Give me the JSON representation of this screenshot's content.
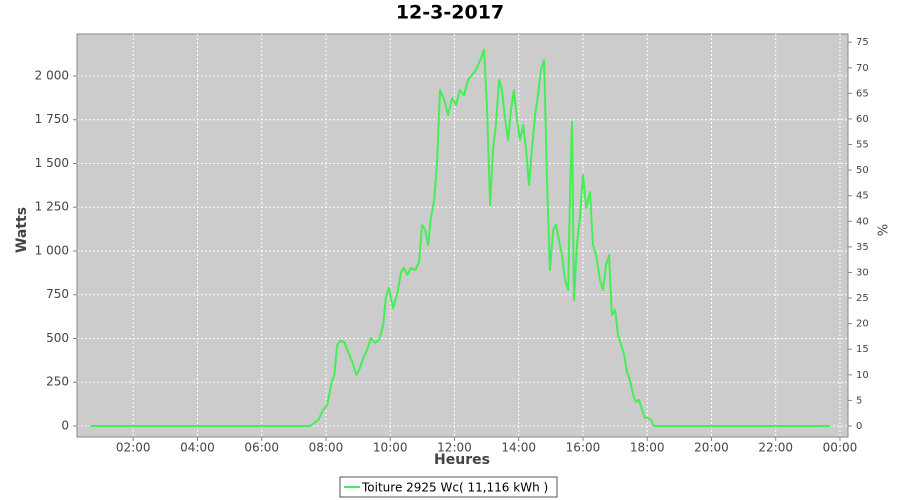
{
  "chart_data": {
    "type": "line",
    "title": "12-3-2017",
    "x_label": "Heures",
    "y_label": "Watts",
    "y2_label": "%",
    "xlim": [
      0.25,
      24.25
    ],
    "xticks": [
      {
        "value": 2,
        "label": "02:00"
      },
      {
        "value": 4,
        "label": "04:00"
      },
      {
        "value": 6,
        "label": "06:00"
      },
      {
        "value": 8,
        "label": "08:00"
      },
      {
        "value": 10,
        "label": "10:00"
      },
      {
        "value": 12,
        "label": "12:00"
      },
      {
        "value": 14,
        "label": "14:00"
      },
      {
        "value": 16,
        "label": "16:00"
      },
      {
        "value": 18,
        "label": "18:00"
      },
      {
        "value": 20,
        "label": "20:00"
      },
      {
        "value": 22,
        "label": "22:00"
      },
      {
        "value": 24,
        "label": "00:00"
      }
    ],
    "ylim": [
      -63,
      2240
    ],
    "yticks": [
      0,
      250,
      500,
      750,
      {
        "value": 1000,
        "label": "1 000"
      },
      {
        "value": 1250,
        "label": "1 250"
      },
      {
        "value": 1500,
        "label": "1 500"
      },
      {
        "value": 1750,
        "label": "1 750"
      },
      {
        "value": 2000,
        "label": "2 000"
      }
    ],
    "y2lim": [
      -2.15,
      76.6
    ],
    "y2ticks": [
      0,
      5,
      10,
      15,
      20,
      25,
      30,
      35,
      40,
      45,
      50,
      55,
      60,
      65,
      70,
      75
    ],
    "grid": true,
    "legend": "bottom",
    "series": [
      {
        "name": "Toiture 2925 Wc( 11,116 kWh )",
        "color": "#44ee55",
        "x": [
          0.66,
          7.51,
          7.76,
          7.91,
          8.04,
          8.17,
          8.26,
          8.35,
          8.45,
          8.57,
          8.69,
          8.82,
          8.94,
          9.03,
          9.16,
          9.28,
          9.4,
          9.53,
          9.65,
          9.78,
          9.87,
          9.96,
          10.09,
          10.21,
          10.34,
          10.43,
          10.53,
          10.65,
          10.78,
          10.9,
          10.99,
          11.09,
          11.18,
          11.27,
          11.37,
          11.46,
          11.55,
          11.68,
          11.8,
          11.93,
          12.05,
          12.17,
          12.3,
          12.42,
          12.55,
          12.67,
          12.8,
          12.92,
          13.01,
          13.11,
          13.2,
          13.29,
          13.39,
          13.48,
          13.58,
          13.67,
          13.76,
          13.85,
          13.95,
          14.04,
          14.14,
          14.23,
          14.32,
          14.41,
          14.51,
          14.6,
          14.69,
          14.79,
          14.88,
          14.97,
          15.07,
          15.16,
          15.25,
          15.35,
          15.44,
          15.54,
          15.6,
          15.66,
          15.72,
          15.82,
          15.91,
          16.0,
          16.1,
          16.22,
          16.31,
          16.41,
          16.53,
          16.62,
          16.72,
          16.81,
          16.9,
          17.0,
          17.09,
          17.19,
          17.28,
          17.37,
          17.46,
          17.56,
          17.65,
          17.74,
          17.84,
          17.93,
          18.02,
          18.12,
          18.21,
          18.4,
          23.69
        ],
        "values": [
          0,
          0,
          34,
          91,
          120,
          246,
          291,
          463,
          486,
          480,
          423,
          366,
          291,
          320,
          389,
          434,
          503,
          474,
          491,
          577,
          743,
          789,
          674,
          749,
          880,
          903,
          863,
          903,
          891,
          937,
          1149,
          1120,
          1034,
          1194,
          1291,
          1509,
          1920,
          1863,
          1777,
          1874,
          1834,
          1920,
          1891,
          1977,
          2006,
          2034,
          2091,
          2149,
          1834,
          1263,
          1577,
          1720,
          1977,
          1920,
          1749,
          1634,
          1806,
          1920,
          1749,
          1634,
          1720,
          1577,
          1377,
          1577,
          1777,
          1891,
          2034,
          2091,
          1406,
          891,
          1120,
          1149,
          1063,
          977,
          834,
          777,
          1349,
          1737,
          720,
          1051,
          1206,
          1434,
          1246,
          1337,
          1034,
          977,
          834,
          777,
          920,
          977,
          634,
          663,
          520,
          463,
          406,
          309,
          263,
          177,
          137,
          149,
          91,
          46,
          46,
          34,
          0,
          0,
          0
        ]
      }
    ]
  }
}
